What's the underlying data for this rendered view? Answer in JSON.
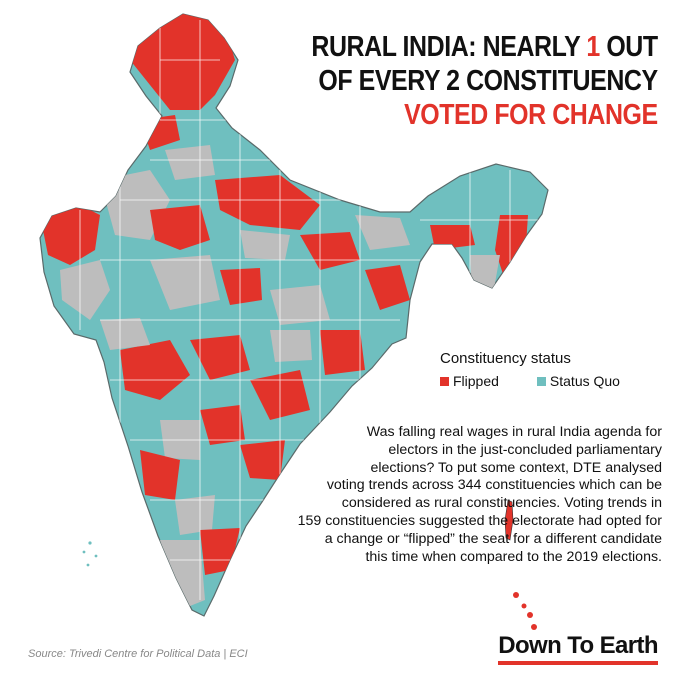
{
  "title": {
    "line1_a": "RURAL INDIA: NEARLY ",
    "line1_b": "1",
    "line1_c": " OUT",
    "line2": "OF EVERY 2 CONSTITUENCY",
    "line3": "VOTED FOR CHANGE"
  },
  "legend": {
    "title": "Constituency status",
    "items": [
      {
        "label": "Flipped",
        "color": "#e2332a"
      },
      {
        "label": "Status Quo",
        "color": "#6fbfbf"
      }
    ]
  },
  "map_colors": {
    "flipped": "#e2332a",
    "status_quo": "#6fbfbf",
    "non_rural": "#bdbdbd"
  },
  "body_text": [
    "Was falling real wages in rural India agenda for",
    "electors in the just-concluded parliamentary",
    "elections? To put some context, DTE analysed",
    "voting trends across 344 constituencies which can be",
    "considered as rural constituencies. Voting trends in",
    "159 constituencies suggested the electorate had opted for",
    "a change or “flipped” the seat for a different candidate",
    "this time when compared to the 2019 elections."
  ],
  "source": "Source:  Trivedi Centre for Political Data  |  ECI",
  "brand": "Down To Earth"
}
